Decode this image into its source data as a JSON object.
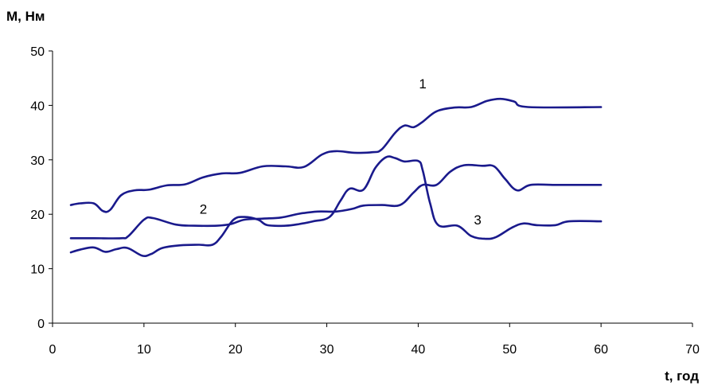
{
  "chart_data": {
    "type": "line",
    "title": "",
    "ylabel": "M, Нм",
    "xlabel": "t, год",
    "xlim": [
      0,
      70
    ],
    "ylim": [
      0,
      50
    ],
    "xticks": [
      0,
      10,
      20,
      30,
      40,
      50,
      60,
      70
    ],
    "yticks": [
      0,
      10,
      20,
      30,
      40,
      50
    ],
    "grid": false,
    "line_color": "#1a1a8c",
    "series": [
      {
        "name": "1",
        "label_pos": [
          40.5,
          44
        ],
        "points": [
          [
            2,
            21.7
          ],
          [
            3,
            22
          ],
          [
            4.5,
            22
          ],
          [
            5.5,
            20.6
          ],
          [
            6.3,
            20.8
          ],
          [
            7.5,
            23.5
          ],
          [
            9,
            24.4
          ],
          [
            10.5,
            24.5
          ],
          [
            12.5,
            25.3
          ],
          [
            14.5,
            25.5
          ],
          [
            16.5,
            26.8
          ],
          [
            18.5,
            27.5
          ],
          [
            20.5,
            27.6
          ],
          [
            23,
            28.8
          ],
          [
            25.5,
            28.8
          ],
          [
            27.5,
            28.7
          ],
          [
            29.5,
            31
          ],
          [
            31,
            31.6
          ],
          [
            33,
            31.3
          ],
          [
            35,
            31.4
          ],
          [
            36,
            31.9
          ],
          [
            37.5,
            35
          ],
          [
            38.5,
            36.3
          ],
          [
            39.5,
            36
          ],
          [
            40.5,
            37
          ],
          [
            42,
            38.9
          ],
          [
            44,
            39.6
          ],
          [
            45.8,
            39.7
          ],
          [
            47.5,
            40.8
          ],
          [
            49,
            41.2
          ],
          [
            50.5,
            40.7
          ],
          [
            52,
            39.7
          ],
          [
            60,
            39.7
          ]
        ]
      },
      {
        "name": "2",
        "label_pos": [
          16.5,
          21
        ],
        "points": [
          [
            2,
            15.6
          ],
          [
            4.5,
            15.6
          ],
          [
            7.5,
            15.6
          ],
          [
            8.3,
            16
          ],
          [
            10,
            19
          ],
          [
            11,
            19.3
          ],
          [
            13.5,
            18.1
          ],
          [
            15.5,
            17.9
          ],
          [
            18,
            17.9
          ],
          [
            19.5,
            18.2
          ],
          [
            21,
            19
          ],
          [
            23,
            19.2
          ],
          [
            25,
            19.4
          ],
          [
            27,
            20.1
          ],
          [
            29,
            20.5
          ],
          [
            31,
            20.5
          ],
          [
            32.8,
            21
          ],
          [
            34,
            21.6
          ],
          [
            36,
            21.7
          ],
          [
            38,
            21.7
          ],
          [
            39.5,
            24
          ],
          [
            40.5,
            25.4
          ],
          [
            42,
            25.4
          ],
          [
            43.5,
            27.8
          ],
          [
            45,
            29
          ],
          [
            47,
            28.9
          ],
          [
            48.3,
            28.8
          ],
          [
            49.5,
            26.5
          ],
          [
            50.8,
            24.4
          ],
          [
            52.3,
            25.4
          ],
          [
            55,
            25.4
          ],
          [
            60,
            25.4
          ]
        ]
      },
      {
        "name": "3",
        "label_pos": [
          46.5,
          19
        ],
        "points": [
          [
            2,
            13
          ],
          [
            3,
            13.5
          ],
          [
            4.5,
            13.9
          ],
          [
            5.8,
            13.1
          ],
          [
            7,
            13.6
          ],
          [
            8.2,
            13.8
          ],
          [
            9.8,
            12.4
          ],
          [
            10.8,
            12.7
          ],
          [
            12,
            13.8
          ],
          [
            14,
            14.3
          ],
          [
            16,
            14.4
          ],
          [
            17.5,
            14.4
          ],
          [
            18.5,
            16
          ],
          [
            19.8,
            19
          ],
          [
            21,
            19.5
          ],
          [
            22.5,
            19
          ],
          [
            23.5,
            18
          ],
          [
            25.5,
            17.9
          ],
          [
            27,
            18.2
          ],
          [
            28.5,
            18.7
          ],
          [
            30.3,
            19.5
          ],
          [
            31.5,
            22.5
          ],
          [
            32.5,
            24.7
          ],
          [
            34,
            24.5
          ],
          [
            35.3,
            28.5
          ],
          [
            36.5,
            30.5
          ],
          [
            37.5,
            30.3
          ],
          [
            38.5,
            29.7
          ],
          [
            40,
            29.8
          ],
          [
            40.5,
            28
          ],
          [
            41.3,
            22
          ],
          [
            42.2,
            18
          ],
          [
            44.3,
            17.9
          ],
          [
            45.8,
            16
          ],
          [
            47.3,
            15.5
          ],
          [
            48.5,
            15.8
          ],
          [
            50.2,
            17.5
          ],
          [
            51.5,
            18.3
          ],
          [
            53,
            18
          ],
          [
            55,
            18
          ],
          [
            56.5,
            18.7
          ],
          [
            60,
            18.7
          ]
        ]
      }
    ]
  }
}
